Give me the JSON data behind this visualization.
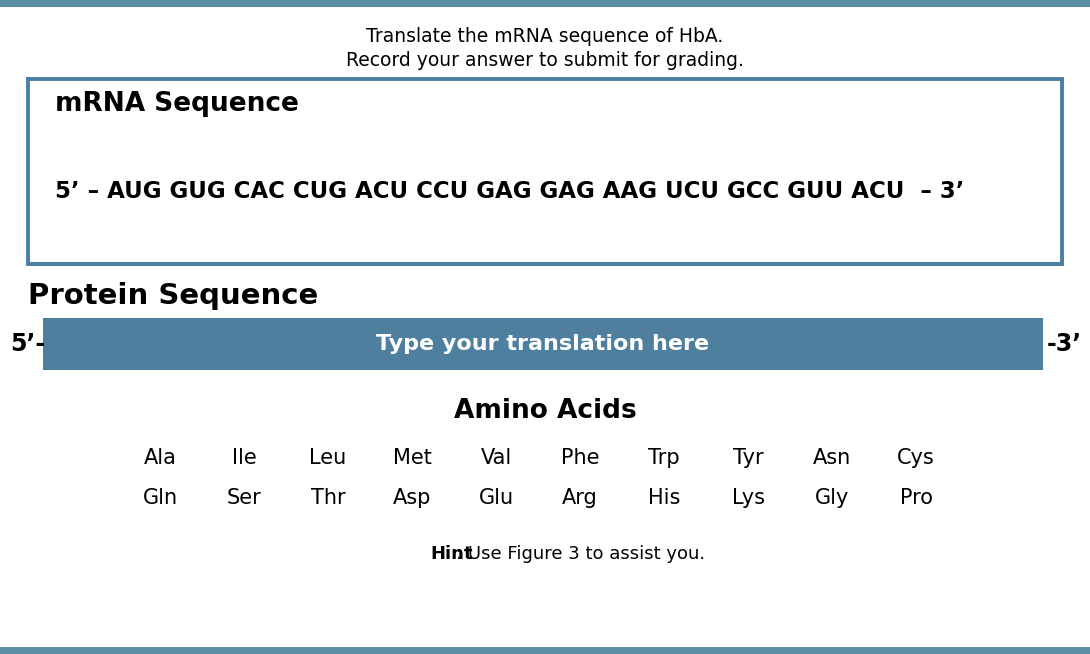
{
  "bg_color": "#ffffff",
  "border_color": "#5b8fa8",
  "title_line1": "Translate the mRNA sequence of HbA.",
  "title_line2": "Record your answer to submit for grading.",
  "title_fontsize": 13.5,
  "mrna_box_color": "#4a7fa5",
  "mrna_label": "mRNA Sequence",
  "mrna_label_fontsize": 19,
  "mrna_sequence": "5’ – AUG GUG CAC CUG ACU CCU GAG GAG AAG UCU GCC GUU ACU  – 3’",
  "mrna_seq_fontsize": 16.5,
  "protein_label": "Protein Sequence",
  "protein_label_fontsize": 21,
  "translation_bar_color": "#4e7f9e",
  "translation_text": "Type your translation here",
  "translation_text_color": "#ffffff",
  "translation_fontsize": 16,
  "five_prime": "5’-",
  "three_prime": "-3’",
  "prime_fontsize": 17,
  "amino_acids_title": "Amino Acids",
  "amino_acids_title_fontsize": 19,
  "amino_acids_row1": [
    "Ala",
    "Ile",
    "Leu",
    "Met",
    "Val",
    "Phe",
    "Trp",
    "Tyr",
    "Asn",
    "Cys"
  ],
  "amino_acids_row2": [
    "Gln",
    "Ser",
    "Thr",
    "Asp",
    "Glu",
    "Arg",
    "His",
    "Lys",
    "Gly",
    "Pro"
  ],
  "amino_acids_fontsize": 15,
  "hint_bold": "Hint",
  "hint_regular": ": Use Figure 3 to assist you.",
  "hint_fontsize": 13
}
